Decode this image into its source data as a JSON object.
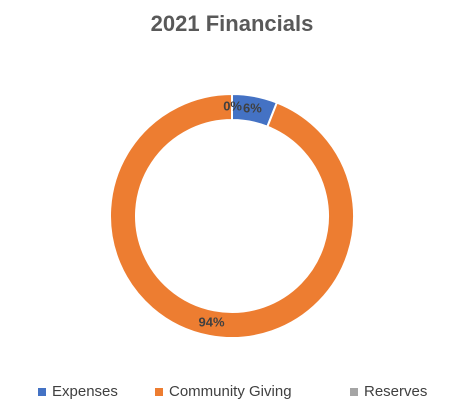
{
  "chart_data": {
    "type": "donut",
    "title": "2021 Financials",
    "categories": [
      "Expenses",
      "Community Giving",
      "Reserves"
    ],
    "values": [
      6,
      94,
      0
    ],
    "value_labels": [
      "6%",
      "94%",
      "0%"
    ],
    "colors": [
      "#4472c4",
      "#ed7d31",
      "#a5a5a5"
    ],
    "legend": "bottom"
  }
}
